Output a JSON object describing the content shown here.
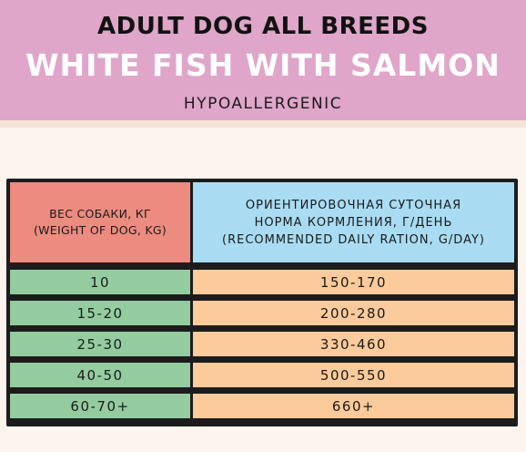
{
  "header": {
    "line1": "ADULT DOG ALL BREEDS",
    "line2": "WHITE FISH WITH SALMON",
    "line3": "HYPOALLERGENIC"
  },
  "table": {
    "col1": {
      "line1": "ВЕС СОБАКИ, КГ",
      "line2": "(WEIGHT OF DOG, KG)"
    },
    "col2": {
      "line1": "ОРИЕНТИРОВОЧНАЯ СУТОЧНАЯ",
      "line2": "НОРМА КОРМЛЕНИЯ, Г/ДЕНЬ",
      "line3": "(RECOMMENDED DAILY RATION, G/DAY)"
    },
    "rows": [
      {
        "weight": "10",
        "ration": "150-170"
      },
      {
        "weight": "15-20",
        "ration": "200-280"
      },
      {
        "weight": "25-30",
        "ration": "330-460"
      },
      {
        "weight": "40-50",
        "ration": "500-550"
      },
      {
        "weight": "60-70+",
        "ration": "660+"
      }
    ]
  },
  "colors": {
    "header_bg": "#dfa6c9",
    "weight_header": "#ec8b7f",
    "ration_header": "#a9dcf2",
    "weight_cells": "#94cca0",
    "ration_cells": "#fbcb9b"
  }
}
